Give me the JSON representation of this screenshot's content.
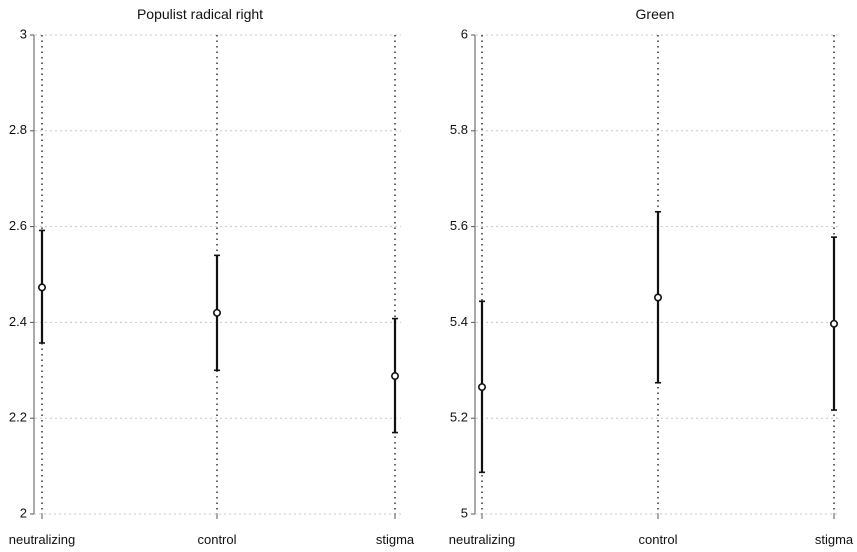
{
  "chart_data": [
    {
      "type": "scatter",
      "title": "Populist radical right",
      "categories": [
        "neutralizing",
        "control",
        "stigma"
      ],
      "estimates": [
        2.473,
        2.42,
        2.288
      ],
      "ci_lower": [
        2.357,
        2.3,
        2.17
      ],
      "ci_upper": [
        2.592,
        2.54,
        2.408
      ],
      "ylim": [
        2,
        3
      ],
      "yticks": [
        "2",
        "2.2",
        "2.4",
        "2.6",
        "2.8",
        "3"
      ],
      "grid": true
    },
    {
      "type": "scatter",
      "title": "Green",
      "categories": [
        "neutralizing",
        "control",
        "stigma"
      ],
      "estimates": [
        5.265,
        5.452,
        5.397
      ],
      "ci_lower": [
        5.087,
        5.274,
        5.217
      ],
      "ci_upper": [
        5.444,
        5.631,
        5.578
      ],
      "ylim": [
        5,
        6
      ],
      "yticks": [
        "5",
        "5.2",
        "5.4",
        "5.6",
        "5.8",
        "6"
      ],
      "grid": true
    }
  ]
}
